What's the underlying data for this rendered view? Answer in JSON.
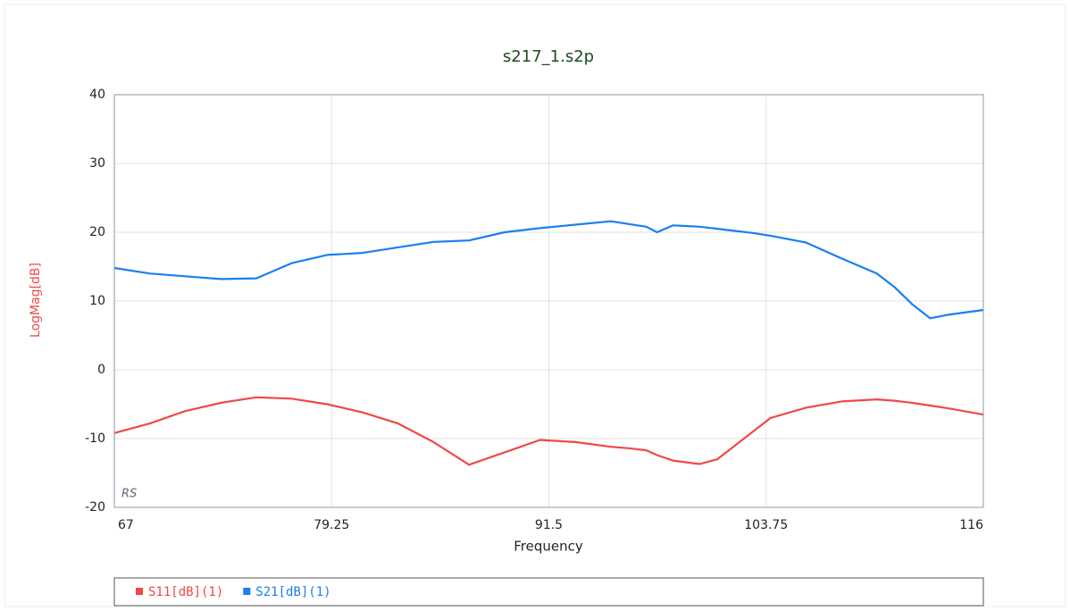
{
  "chart_data": {
    "type": "line",
    "title": "s217_1.s2p",
    "x_label": "Frequency",
    "y_label": "LogMag[dB]",
    "watermark": "RS",
    "x": [
      67,
      69,
      71,
      73,
      75,
      77,
      79,
      81,
      83,
      85,
      87,
      89,
      91,
      93,
      95,
      96,
      97,
      97.6,
      98.5,
      100,
      101,
      102,
      103,
      104,
      106,
      108,
      110,
      111,
      112,
      113,
      114,
      116
    ],
    "series": [
      {
        "name": "S11[dB](1)",
        "color": "#f04848",
        "values": [
          -9.2,
          -7.8,
          -6,
          -4.8,
          -4,
          -4.2,
          -5,
          -6.2,
          -7.8,
          -10.5,
          -13.8,
          -12,
          -10.2,
          -10.5,
          -11.2,
          -11.4,
          -11.7,
          -12.4,
          -13.2,
          -13.7,
          -13,
          -11,
          -9,
          -7,
          -5.5,
          -4.6,
          -4.3,
          -4.5,
          -4.8,
          -5.2,
          -5.6,
          -6.5
        ]
      },
      {
        "name": "S21[dB](1)",
        "color": "#1a7ff0",
        "values": [
          14.8,
          14,
          13.6,
          13.2,
          13.3,
          15.5,
          16.7,
          17,
          17.8,
          18.6,
          18.8,
          20,
          20.6,
          21.1,
          21.6,
          21.2,
          20.8,
          20,
          21,
          20.8,
          20.5,
          20.2,
          19.9,
          19.5,
          18.5,
          16.2,
          14,
          12,
          9.5,
          7.5,
          8,
          8.7
        ]
      }
    ],
    "xlim": [
      67,
      116
    ],
    "xticks": [
      67,
      79.25,
      91.5,
      103.75,
      116
    ],
    "ylim": [
      -20,
      40
    ],
    "yticks": [
      -20,
      -10,
      0,
      10,
      20,
      30,
      40
    ],
    "grid": true,
    "legend": "bottom"
  }
}
